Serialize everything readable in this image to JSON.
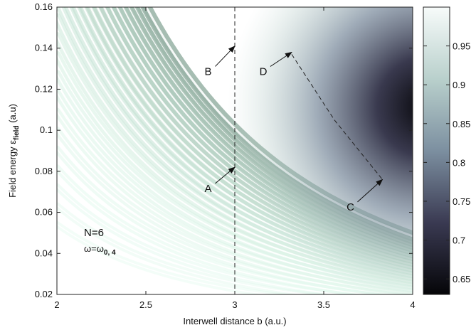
{
  "chart_data": {
    "type": "heatmap",
    "xlabel": "Interwell distance b (a.u.)",
    "ylabel": {
      "prefix": "Field energy ",
      "symbol": "ε",
      "subscript": "field",
      "suffix": " (a.u)"
    },
    "xlim": [
      2,
      4
    ],
    "ylim": [
      0.02,
      0.16
    ],
    "x_ticks": [
      2,
      2.5,
      3,
      3.5,
      4
    ],
    "x_tick_labels": [
      "2",
      "2.5",
      "3",
      "3.5",
      "4"
    ],
    "y_ticks": [
      0.02,
      0.04,
      0.06,
      0.08,
      0.1,
      0.12,
      0.14,
      0.16
    ],
    "y_tick_labels": [
      "0.02",
      "0.04",
      "0.06",
      "0.08",
      "0.1",
      "0.12",
      "0.14",
      "0.16"
    ],
    "colorbar": {
      "range": [
        0.63,
        1.0
      ],
      "ticks": [
        0.65,
        0.7,
        0.75,
        0.8,
        0.85,
        0.9,
        0.95
      ],
      "tick_labels": [
        "0.65",
        "0.7",
        "0.75",
        "0.8",
        "0.85",
        "0.9",
        "0.95"
      ],
      "colormap": "bone"
    },
    "annotation_text": {
      "n": "N=6",
      "omega_main": "ω=ω",
      "omega_sub": "0, 4"
    },
    "vertical_line_x": 3.0,
    "dashed_path": [
      {
        "x": 3.32,
        "y": 0.137
      },
      {
        "x": 3.56,
        "y": 0.105
      },
      {
        "x": 3.83,
        "y": 0.076
      }
    ],
    "arrows": [
      {
        "label": "A",
        "text_x": 2.85,
        "text_y": 0.072,
        "tip_x": 3.0,
        "tip_y": 0.082
      },
      {
        "label": "B",
        "text_x": 2.85,
        "text_y": 0.129,
        "tip_x": 3.0,
        "tip_y": 0.141
      },
      {
        "label": "D",
        "text_x": 3.16,
        "text_y": 0.129,
        "tip_x": 3.32,
        "tip_y": 0.138
      },
      {
        "label": "C",
        "text_x": 3.65,
        "text_y": 0.063,
        "tip_x": 3.83,
        "tip_y": 0.076
      }
    ],
    "colors": {
      "white": "#ffffff",
      "light": "#e3eeec",
      "mid": "#a9c5c0",
      "dark": "#4a4a62",
      "darkest": "#050508"
    }
  }
}
